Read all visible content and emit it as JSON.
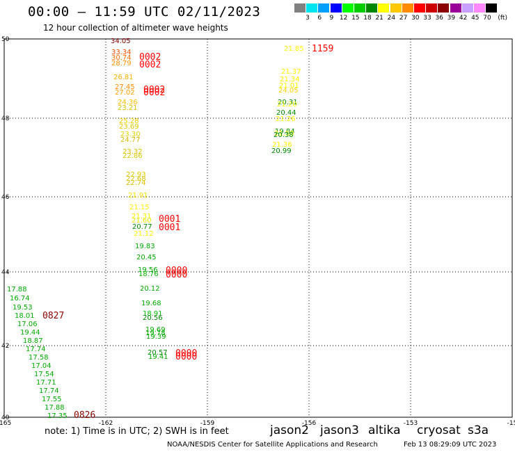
{
  "title": "00:00 – 11:59 UTC 02/11/2023",
  "subtitle": "12 hour collection of altimeter wave heights",
  "legend": {
    "unit": "(ft)",
    "items": [
      {
        "label": "3",
        "color": "#808080"
      },
      {
        "label": "6",
        "color": "#00e5ee"
      },
      {
        "label": "9",
        "color": "#00a0ff"
      },
      {
        "label": "12",
        "color": "#0000ff"
      },
      {
        "label": "15",
        "color": "#00ff00"
      },
      {
        "label": "18",
        "color": "#00cc00"
      },
      {
        "label": "21",
        "color": "#008800"
      },
      {
        "label": "24",
        "color": "#ffff00"
      },
      {
        "label": "27",
        "color": "#ffc800"
      },
      {
        "label": "30",
        "color": "#ff8c00"
      },
      {
        "label": "33",
        "color": "#ff0000"
      },
      {
        "label": "36",
        "color": "#cc0000"
      },
      {
        "label": "39",
        "color": "#8b0000"
      },
      {
        "label": "42",
        "color": "#990099"
      },
      {
        "label": "45",
        "color": "#c8a0ff"
      },
      {
        "label": "70",
        "color": "#ff88ff"
      },
      {
        "label": "",
        "color": "#000000"
      }
    ]
  },
  "map": {
    "lon_ticks": [
      "-165",
      "-162",
      "-159",
      "-156",
      "-153",
      "-15"
    ],
    "lat_ticks": [
      "50",
      "48",
      "46",
      "44",
      "42",
      "40"
    ]
  },
  "readings": [
    {
      "t": "34.05",
      "lx": "159",
      "ly": "62",
      "c": "#8b0000"
    },
    {
      "t": "33.34",
      "lx": "160",
      "ly": "78",
      "c": "#ff5000"
    },
    {
      "t": "30.74",
      "lx": "160",
      "ly": "86",
      "c": "#ff7000"
    },
    {
      "t": "28.79",
      "lx": "160",
      "ly": "94",
      "c": "#ff9000"
    },
    {
      "t": "26.81",
      "lx": "163",
      "ly": "114",
      "c": "#ffb000"
    },
    {
      "t": "27.45",
      "lx": "165",
      "ly": "128",
      "c": "#ff8c00"
    },
    {
      "t": "27.02",
      "lx": "165",
      "ly": "136",
      "c": "#ffa000"
    },
    {
      "t": "24.36",
      "lx": "169",
      "ly": "150",
      "c": "#ffc000"
    },
    {
      "t": "23.21",
      "lx": "169",
      "ly": "158",
      "c": "#d8c000"
    },
    {
      "t": "25.28",
      "lx": "171",
      "ly": "177",
      "c": "#ffd000"
    },
    {
      "t": "23.69",
      "lx": "171",
      "ly": "185",
      "c": "#e0c800"
    },
    {
      "t": "23.30",
      "lx": "173",
      "ly": "196",
      "c": "#e0d000"
    },
    {
      "t": "24.77",
      "lx": "173",
      "ly": "204",
      "c": "#d8b800"
    },
    {
      "t": "23.32",
      "lx": "176",
      "ly": "221",
      "c": "#e0c000"
    },
    {
      "t": "22.86",
      "lx": "176",
      "ly": "227",
      "c": "#d8c800"
    },
    {
      "t": "22.93",
      "lx": "181",
      "ly": "254",
      "c": "#e0c800"
    },
    {
      "t": "22.68",
      "lx": "181",
      "ly": "260",
      "c": "#d8c000"
    },
    {
      "t": "22.74",
      "lx": "181",
      "ly": "266",
      "c": "#e0c000"
    },
    {
      "t": "21.91",
      "lx": "184",
      "ly": "284",
      "c": "#ffe000"
    },
    {
      "t": "21.15",
      "lx": "186",
      "ly": "301",
      "c": "#ffff00"
    },
    {
      "t": "21.31",
      "lx": "189",
      "ly": "314",
      "c": "#ffff00"
    },
    {
      "t": "21.60",
      "lx": "189",
      "ly": "320",
      "c": "#e8e800"
    },
    {
      "t": "20.77",
      "lx": "190",
      "ly": "329",
      "c": "#008800"
    },
    {
      "t": "21.12",
      "lx": "192",
      "ly": "339",
      "c": "#ffff00"
    },
    {
      "t": "19.83",
      "lx": "194",
      "ly": "357",
      "c": "#00aa00"
    },
    {
      "t": "20.45",
      "lx": "196",
      "ly": "373",
      "c": "#00aa00"
    },
    {
      "t": "19.56",
      "lx": "198",
      "ly": "391",
      "c": "#00aa00"
    },
    {
      "t": "18.76",
      "lx": "199",
      "ly": "397",
      "c": "#00bb00"
    },
    {
      "t": "20.12",
      "lx": "201",
      "ly": "418",
      "c": "#00aa00"
    },
    {
      "t": "19.68",
      "lx": "203",
      "ly": "439",
      "c": "#00aa00"
    },
    {
      "t": "18.91",
      "lx": "205",
      "ly": "454",
      "c": "#00bb00"
    },
    {
      "t": "20.56",
      "lx": "205",
      "ly": "460",
      "c": "#008800"
    },
    {
      "t": "19.69",
      "lx": "209",
      "ly": "477",
      "c": "#00aa00"
    },
    {
      "t": "19.78",
      "lx": "209",
      "ly": "482",
      "c": "#00aa00"
    },
    {
      "t": "19.39",
      "lx": "210",
      "ly": "487",
      "c": "#00aa00"
    },
    {
      "t": "20.57",
      "lx": "212",
      "ly": "510",
      "c": "#008800"
    },
    {
      "t": "19.41",
      "lx": "213",
      "ly": "516",
      "c": "#00aa00"
    },
    {
      "t": "17.88",
      "lx": "10",
      "ly": "419",
      "c": "#00aa00"
    },
    {
      "t": "16.74",
      "lx": "14",
      "ly": "432",
      "c": "#00aa00"
    },
    {
      "t": "19.53",
      "lx": "18",
      "ly": "445",
      "c": "#00aa00"
    },
    {
      "t": "18.01",
      "lx": "21",
      "ly": "457",
      "c": "#00aa00"
    },
    {
      "t": "17.06",
      "lx": "25",
      "ly": "469",
      "c": "#00aa00"
    },
    {
      "t": "19.44",
      "lx": "29",
      "ly": "481",
      "c": "#00aa00"
    },
    {
      "t": "18.87",
      "lx": "33",
      "ly": "493",
      "c": "#00aa00"
    },
    {
      "t": "17.74",
      "lx": "37",
      "ly": "505",
      "c": "#00aa00"
    },
    {
      "t": "17.58",
      "lx": "41",
      "ly": "517",
      "c": "#00aa00"
    },
    {
      "t": "17.04",
      "lx": "45",
      "ly": "529",
      "c": "#00aa00"
    },
    {
      "t": "17.54",
      "lx": "49",
      "ly": "541",
      "c": "#00aa00"
    },
    {
      "t": "17.71",
      "lx": "52",
      "ly": "553",
      "c": "#00aa00"
    },
    {
      "t": "17.74",
      "lx": "56",
      "ly": "565",
      "c": "#00aa00"
    },
    {
      "t": "17.55",
      "lx": "60",
      "ly": "577",
      "c": "#00aa00"
    },
    {
      "t": "17.88",
      "lx": "64",
      "ly": "589",
      "c": "#00aa00"
    },
    {
      "t": "17.35",
      "lx": "68",
      "ly": "601",
      "c": "#00aa00"
    },
    {
      "t": "21.85",
      "lx": "408",
      "ly": "73",
      "c": "#ffff00"
    },
    {
      "t": "21.37",
      "lx": "404",
      "ly": "106",
      "c": "#ffff00"
    },
    {
      "t": "21.34",
      "lx": "402",
      "ly": "117",
      "c": "#ffff00"
    },
    {
      "t": "21.01",
      "lx": "401",
      "ly": "126",
      "c": "#ffff00"
    },
    {
      "t": "24.05",
      "lx": "400",
      "ly": "133",
      "c": "#ffd000"
    },
    {
      "t": "20.31",
      "lx": "399",
      "ly": "150",
      "c": "#008800"
    },
    {
      "t": "21.20",
      "lx": "398",
      "ly": "153",
      "c": "#ffff00"
    },
    {
      "t": "20.44",
      "lx": "397",
      "ly": "165",
      "c": "#008800"
    },
    {
      "t": "21.26",
      "lx": "396",
      "ly": "174",
      "c": "#ffff00"
    },
    {
      "t": "19.84",
      "lx": "395",
      "ly": "192",
      "c": "#008800"
    },
    {
      "t": "21.50",
      "lx": "394",
      "ly": "195",
      "c": "#ffff00"
    },
    {
      "t": "20.38",
      "lx": "393",
      "ly": "197",
      "c": "#008800"
    },
    {
      "t": "21.36",
      "lx": "391",
      "ly": "211",
      "c": "#ffff00"
    },
    {
      "t": "20.99",
      "lx": "390",
      "ly": "220",
      "c": "#008800"
    }
  ],
  "times": [
    {
      "t": "0002",
      "lx": "200",
      "ly": "86",
      "c": "#ff0000"
    },
    {
      "t": "0002",
      "lx": "200",
      "ly": "97",
      "c": "#ff0000"
    },
    {
      "t": "0002",
      "lx": "206",
      "ly": "133",
      "c": "#ff0000"
    },
    {
      "t": "0002",
      "lx": "206",
      "ly": "137",
      "c": "#ff0000"
    },
    {
      "t": "0001",
      "lx": "228",
      "ly": "319",
      "c": "#ff0000"
    },
    {
      "t": "0001",
      "lx": "228",
      "ly": "331",
      "c": "#ff0000"
    },
    {
      "t": "0000",
      "lx": "238",
      "ly": "393",
      "c": "#ff0000"
    },
    {
      "t": "0000",
      "lx": "238",
      "ly": "399",
      "c": "#ff0000"
    },
    {
      "t": "0000",
      "lx": "252",
      "ly": "512",
      "c": "#ff0000"
    },
    {
      "t": "0000",
      "lx": "252",
      "ly": "517",
      "c": "#ff0000"
    },
    {
      "t": "0827",
      "lx": "61",
      "ly": "458",
      "c": "#8b0000"
    },
    {
      "t": "0826",
      "lx": "106",
      "ly": "601",
      "c": "#8b0000"
    },
    {
      "t": "1159",
      "lx": "448",
      "ly": "74",
      "c": "#ff0000"
    }
  ],
  "footer": {
    "note": "note: 1) Time is in UTC; 2) SWH is in feet",
    "satellites": [
      {
        "name": "jason2",
        "color": "#0000cc"
      },
      {
        "name": "jason3",
        "color": "#009900"
      },
      {
        "name": "altika",
        "color": "#ff8c00"
      },
      {
        "name": "cryosat",
        "color": "#cc0000"
      },
      {
        "name": "s3a",
        "color": "#8b0000"
      }
    ],
    "credit": "NOAA/NESDIS Center for Satellite Applications and Research",
    "generated": "Feb 13 08:29:09 UTC 2023"
  }
}
